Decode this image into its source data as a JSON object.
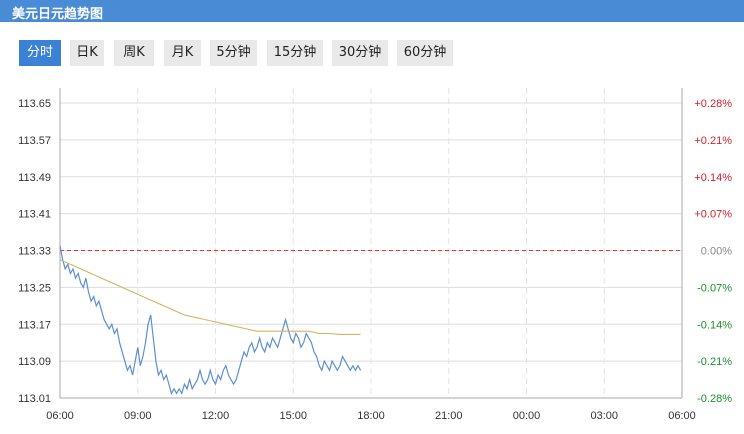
{
  "header": {
    "title": "美元日元趋势图"
  },
  "tabs": [
    {
      "label": "分时",
      "active": true
    },
    {
      "label": "日K",
      "active": false
    },
    {
      "label": "周K",
      "active": false
    },
    {
      "label": "月K",
      "active": false
    },
    {
      "label": "5分钟",
      "active": false
    },
    {
      "label": "15分钟",
      "active": false
    },
    {
      "label": "30分钟",
      "active": false
    },
    {
      "label": "60分钟",
      "active": false
    }
  ],
  "colors": {
    "header": "#4a8bd6",
    "active_tab": "#3b82d6",
    "price_line": "#5b8fd4",
    "average_line": "#d9b25f",
    "baseline": "#e0343a",
    "positive": "#d0202a",
    "negative": "#1a8f2a"
  },
  "chart_data": {
    "type": "line",
    "title": "",
    "xlabel": "",
    "ylabel": "",
    "x_ticks": [
      "06:00",
      "09:00",
      "12:00",
      "15:00",
      "18:00",
      "21:00",
      "00:00",
      "03:00",
      "06:00"
    ],
    "y_ticks": [
      "113.65",
      "113.57",
      "113.49",
      "113.41",
      "113.33",
      "113.25",
      "113.17",
      "113.09",
      "113.01"
    ],
    "y_right_ticks": [
      "+0.28%",
      "+0.21%",
      "+0.14%",
      "+0.07%",
      "0.00%",
      "-0.07%",
      "-0.14%",
      "-0.21%",
      "-0.28%"
    ],
    "ylim": [
      113.01,
      113.65
    ],
    "x_range_hours": [
      0,
      24
    ],
    "baseline": 113.33,
    "grid": true,
    "series": [
      {
        "kind": "price",
        "points": [
          [
            0.0,
            113.34
          ],
          [
            0.1,
            113.31
          ],
          [
            0.2,
            113.29
          ],
          [
            0.3,
            113.3
          ],
          [
            0.4,
            113.28
          ],
          [
            0.5,
            113.29
          ],
          [
            0.6,
            113.27
          ],
          [
            0.7,
            113.28
          ],
          [
            0.8,
            113.26
          ],
          [
            0.9,
            113.25
          ],
          [
            1.0,
            113.27
          ],
          [
            1.1,
            113.24
          ],
          [
            1.2,
            113.22
          ],
          [
            1.3,
            113.23
          ],
          [
            1.4,
            113.21
          ],
          [
            1.5,
            113.22
          ],
          [
            1.6,
            113.2
          ],
          [
            1.7,
            113.18
          ],
          [
            1.8,
            113.17
          ],
          [
            1.9,
            113.16
          ],
          [
            2.0,
            113.17
          ],
          [
            2.1,
            113.15
          ],
          [
            2.2,
            113.16
          ],
          [
            2.3,
            113.13
          ],
          [
            2.4,
            113.11
          ],
          [
            2.5,
            113.09
          ],
          [
            2.6,
            113.07
          ],
          [
            2.7,
            113.08
          ],
          [
            2.8,
            113.06
          ],
          [
            2.9,
            113.09
          ],
          [
            3.0,
            113.12
          ],
          [
            3.1,
            113.08
          ],
          [
            3.2,
            113.1
          ],
          [
            3.3,
            113.13
          ],
          [
            3.4,
            113.17
          ],
          [
            3.5,
            113.19
          ],
          [
            3.6,
            113.14
          ],
          [
            3.7,
            113.09
          ],
          [
            3.8,
            113.06
          ],
          [
            3.9,
            113.07
          ],
          [
            4.0,
            113.05
          ],
          [
            4.1,
            113.06
          ],
          [
            4.2,
            113.04
          ],
          [
            4.3,
            113.02
          ],
          [
            4.4,
            113.03
          ],
          [
            4.5,
            113.02
          ],
          [
            4.6,
            113.03
          ],
          [
            4.7,
            113.02
          ],
          [
            4.8,
            113.04
          ],
          [
            4.9,
            113.03
          ],
          [
            5.0,
            113.05
          ],
          [
            5.1,
            113.03
          ],
          [
            5.2,
            113.04
          ],
          [
            5.3,
            113.05
          ],
          [
            5.4,
            113.07
          ],
          [
            5.5,
            113.05
          ],
          [
            5.6,
            113.04
          ],
          [
            5.7,
            113.05
          ],
          [
            5.8,
            113.07
          ],
          [
            5.9,
            113.05
          ],
          [
            6.0,
            113.04
          ],
          [
            6.1,
            113.06
          ],
          [
            6.2,
            113.05
          ],
          [
            6.3,
            113.07
          ],
          [
            6.4,
            113.08
          ],
          [
            6.5,
            113.06
          ],
          [
            6.6,
            113.05
          ],
          [
            6.7,
            113.04
          ],
          [
            6.8,
            113.05
          ],
          [
            6.9,
            113.07
          ],
          [
            7.0,
            113.09
          ],
          [
            7.1,
            113.11
          ],
          [
            7.2,
            113.1
          ],
          [
            7.3,
            113.12
          ],
          [
            7.4,
            113.13
          ],
          [
            7.5,
            113.11
          ],
          [
            7.6,
            113.12
          ],
          [
            7.7,
            113.14
          ],
          [
            7.8,
            113.12
          ],
          [
            7.9,
            113.11
          ],
          [
            8.0,
            113.13
          ],
          [
            8.1,
            113.12
          ],
          [
            8.2,
            113.14
          ],
          [
            8.3,
            113.13
          ],
          [
            8.4,
            113.12
          ],
          [
            8.5,
            113.14
          ],
          [
            8.6,
            113.16
          ],
          [
            8.7,
            113.18
          ],
          [
            8.8,
            113.16
          ],
          [
            8.9,
            113.14
          ],
          [
            9.0,
            113.13
          ],
          [
            9.1,
            113.15
          ],
          [
            9.2,
            113.14
          ],
          [
            9.3,
            113.12
          ],
          [
            9.4,
            113.13
          ],
          [
            9.5,
            113.15
          ],
          [
            9.6,
            113.14
          ],
          [
            9.7,
            113.13
          ],
          [
            9.8,
            113.11
          ],
          [
            9.9,
            113.1
          ],
          [
            10.0,
            113.08
          ],
          [
            10.1,
            113.07
          ],
          [
            10.2,
            113.09
          ],
          [
            10.3,
            113.08
          ],
          [
            10.4,
            113.07
          ],
          [
            10.5,
            113.09
          ],
          [
            10.6,
            113.08
          ],
          [
            10.7,
            113.07
          ],
          [
            10.8,
            113.08
          ],
          [
            10.9,
            113.1
          ],
          [
            11.0,
            113.09
          ],
          [
            11.1,
            113.08
          ],
          [
            11.2,
            113.07
          ],
          [
            11.3,
            113.08
          ],
          [
            11.4,
            113.07
          ],
          [
            11.5,
            113.08
          ],
          [
            11.6,
            113.07
          ]
        ]
      },
      {
        "kind": "average",
        "points": [
          [
            0.0,
            113.31
          ],
          [
            0.4,
            113.3
          ],
          [
            0.8,
            113.29
          ],
          [
            1.2,
            113.28
          ],
          [
            1.6,
            113.27
          ],
          [
            2.0,
            113.26
          ],
          [
            2.4,
            113.25
          ],
          [
            2.8,
            113.24
          ],
          [
            3.2,
            113.23
          ],
          [
            3.6,
            113.22
          ],
          [
            4.0,
            113.21
          ],
          [
            4.4,
            113.2
          ],
          [
            4.8,
            113.19
          ],
          [
            5.2,
            113.185
          ],
          [
            5.6,
            113.18
          ],
          [
            6.0,
            113.175
          ],
          [
            6.4,
            113.17
          ],
          [
            6.8,
            113.165
          ],
          [
            7.2,
            113.16
          ],
          [
            7.6,
            113.155
          ],
          [
            8.0,
            113.155
          ],
          [
            8.4,
            113.155
          ],
          [
            8.8,
            113.155
          ],
          [
            9.2,
            113.155
          ],
          [
            9.6,
            113.155
          ],
          [
            10.0,
            113.15
          ],
          [
            10.4,
            113.15
          ],
          [
            10.8,
            113.148
          ],
          [
            11.2,
            113.148
          ],
          [
            11.6,
            113.148
          ]
        ]
      }
    ]
  }
}
